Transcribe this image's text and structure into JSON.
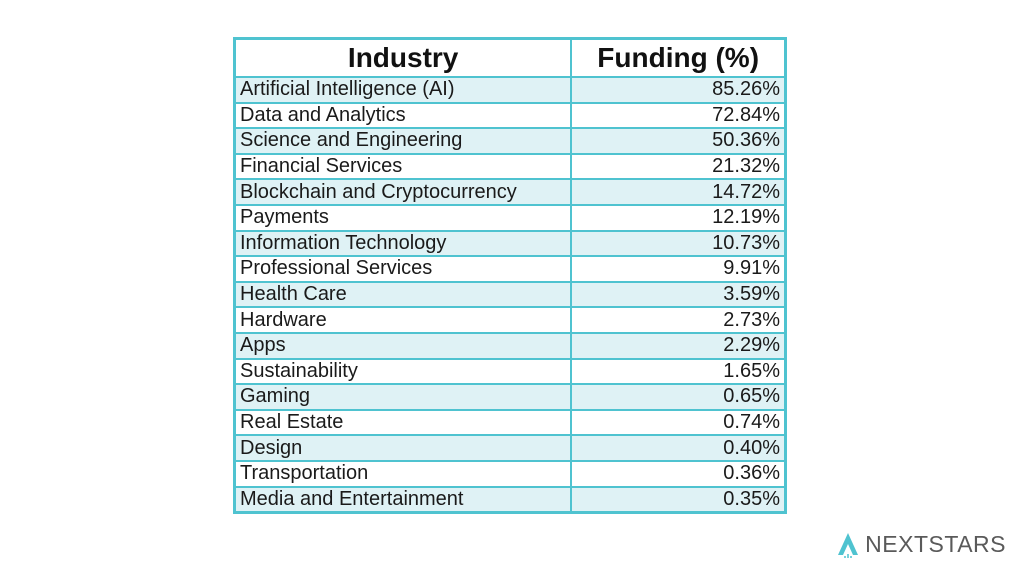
{
  "chart_data": {
    "type": "table",
    "columns": [
      "Industry",
      "Funding (%)"
    ],
    "rows": [
      [
        "Artificial Intelligence (AI)",
        "85.26%"
      ],
      [
        "Data and Analytics",
        "72.84%"
      ],
      [
        "Science and Engineering",
        "50.36%"
      ],
      [
        "Financial Services",
        "21.32%"
      ],
      [
        "Blockchain and Cryptocurrency",
        "14.72%"
      ],
      [
        "Payments",
        "12.19%"
      ],
      [
        "Information Technology",
        "10.73%"
      ],
      [
        "Professional Services",
        "9.91%"
      ],
      [
        "Health Care",
        "3.59%"
      ],
      [
        "Hardware",
        "2.73%"
      ],
      [
        "Apps",
        "2.29%"
      ],
      [
        "Sustainability",
        "1.65%"
      ],
      [
        "Gaming",
        "0.65%"
      ],
      [
        "Real Estate",
        "0.74%"
      ],
      [
        "Design",
        "0.40%"
      ],
      [
        "Transportation",
        "0.36%"
      ],
      [
        "Media and Entertainment",
        "0.35%"
      ]
    ]
  },
  "brand": {
    "name": "NEXTSTARS",
    "logo_icon": "rocket-a-icon",
    "accent_color": "#4fc3d0"
  },
  "colors": {
    "border": "#4fc3d0",
    "row_shade": "#dff2f5",
    "text": "#1a1a1a"
  }
}
